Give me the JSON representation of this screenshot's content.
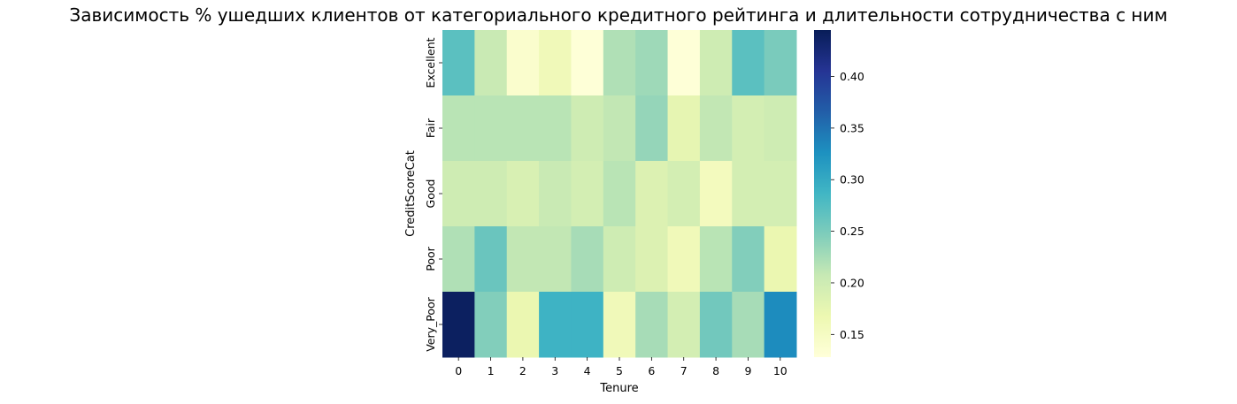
{
  "chart_data": {
    "type": "heatmap",
    "title": "Зависимость % ушедших клиентов от категориального кредитного рейтинга и длительности сотрудничества с ним",
    "xlabel": "Tenure",
    "ylabel": "CreditScoreCat",
    "x_categories": [
      "0",
      "1",
      "2",
      "3",
      "4",
      "5",
      "6",
      "7",
      "8",
      "9",
      "10"
    ],
    "y_categories": [
      "Excellent",
      "Fair",
      "Good",
      "Poor",
      "Very_Poor"
    ],
    "values": [
      [
        0.27,
        0.205,
        0.14,
        0.16,
        0.13,
        0.22,
        0.23,
        0.13,
        0.2,
        0.27,
        0.25
      ],
      [
        0.215,
        0.215,
        0.215,
        0.215,
        0.2,
        0.21,
        0.235,
        0.175,
        0.21,
        0.195,
        0.2
      ],
      [
        0.2,
        0.2,
        0.19,
        0.205,
        0.195,
        0.215,
        0.185,
        0.195,
        0.155,
        0.195,
        0.195
      ],
      [
        0.22,
        0.26,
        0.21,
        0.21,
        0.225,
        0.2,
        0.185,
        0.16,
        0.215,
        0.245,
        0.17
      ],
      [
        0.44,
        0.245,
        0.17,
        0.29,
        0.29,
        0.16,
        0.225,
        0.195,
        0.255,
        0.225,
        0.33
      ]
    ],
    "colorbar": {
      "vmin": 0.128,
      "vmax": 0.445,
      "ticks": [
        "0.15",
        "0.20",
        "0.25",
        "0.30",
        "0.35",
        "0.40"
      ],
      "colormap": "YlGnBu",
      "stops": [
        "#ffffd9",
        "#edf8b1",
        "#c7e9b4",
        "#7fcdbb",
        "#41b6c4",
        "#1d91c0",
        "#225ea8",
        "#253494",
        "#081d58"
      ]
    },
    "grid": false,
    "legend": "colorbar-right"
  }
}
